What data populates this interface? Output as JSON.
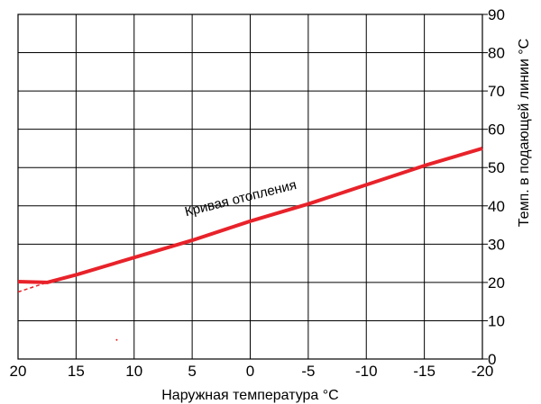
{
  "chart_data": {
    "type": "line",
    "xlabel": "Наружная температура °C",
    "ylabel": "Темп. в подающей линии °C",
    "x_ticks": [
      "20",
      "15",
      "10",
      "5",
      "0",
      "-5",
      "-10",
      "-15",
      "-20"
    ],
    "y_ticks": [
      "0",
      "10",
      "20",
      "30",
      "40",
      "50",
      "60",
      "70",
      "80",
      "90"
    ],
    "xlim": [
      20,
      -20
    ],
    "ylim": [
      0,
      90
    ],
    "y_axis_position": "right",
    "grid": true,
    "colors": {
      "curve": "#e8222a",
      "grid": "#000000"
    },
    "annotation": "Кривая отопления",
    "series": [
      {
        "style": "solid",
        "x": [
          20,
          17.5,
          15,
          10,
          5,
          0,
          -5,
          -10,
          -15,
          -20
        ],
        "y": [
          20.2,
          20,
          22,
          26.5,
          31,
          36,
          40.5,
          45.5,
          50.5,
          55
        ]
      },
      {
        "style": "dashed",
        "x": [
          20,
          17.5
        ],
        "y": [
          17.5,
          20
        ]
      }
    ]
  }
}
